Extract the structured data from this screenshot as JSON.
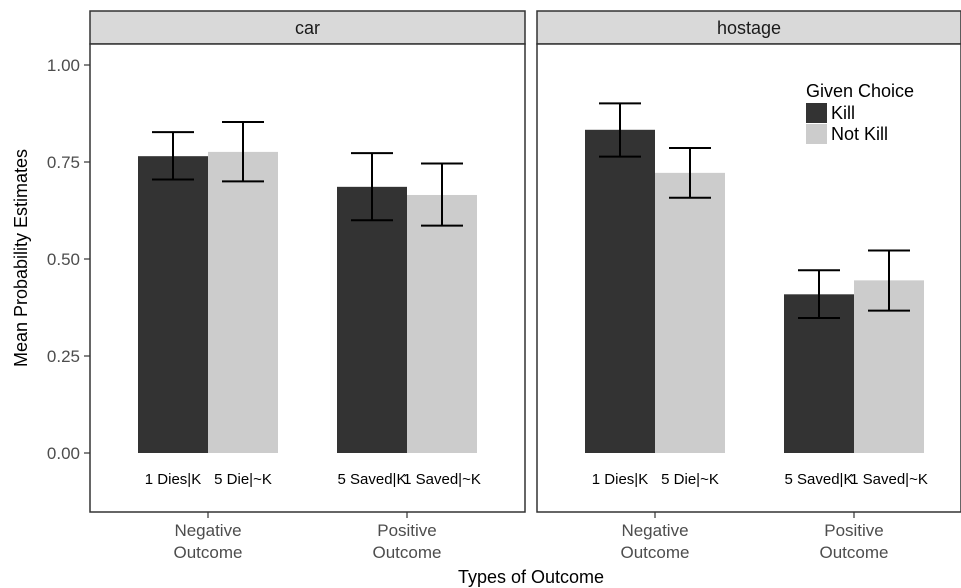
{
  "chart_data": {
    "type": "bar",
    "xlabel": "Types of Outcome",
    "ylabel": "Mean Probability Estimates",
    "ylim": [
      0,
      1.05
    ],
    "yticks": [
      "0.00",
      "0.25",
      "0.50",
      "0.75",
      "1.00"
    ],
    "legend": {
      "title": "Given Choice",
      "placement": "top-right",
      "entries": [
        {
          "name": "Kill",
          "color": "#333333"
        },
        {
          "name": "Not Kill",
          "color": "#cccccc"
        }
      ]
    },
    "group_labels": [
      {
        "line1": "Negative",
        "line2": "Outcome"
      },
      {
        "line1": "Positive",
        "line2": "Outcome"
      }
    ],
    "panels": [
      {
        "name": "car",
        "bars": [
          {
            "label": "1 Dies|K",
            "series": "Kill",
            "value": 0.765,
            "err_low": 0.705,
            "err_high": 0.827
          },
          {
            "label": "5 Die|~K",
            "series": "Not Kill",
            "value": 0.776,
            "err_low": 0.7,
            "err_high": 0.853
          },
          {
            "label": "5 Saved|K",
            "series": "Kill",
            "value": 0.686,
            "err_low": 0.6,
            "err_high": 0.773
          },
          {
            "label": "1 Saved|~K",
            "series": "Not Kill",
            "value": 0.665,
            "err_low": 0.586,
            "err_high": 0.746
          }
        ]
      },
      {
        "name": "hostage",
        "bars": [
          {
            "label": "1 Dies|K",
            "series": "Kill",
            "value": 0.833,
            "err_low": 0.764,
            "err_high": 0.901
          },
          {
            "label": "5 Die|~K",
            "series": "Not Kill",
            "value": 0.722,
            "err_low": 0.658,
            "err_high": 0.786
          },
          {
            "label": "5 Saved|K",
            "series": "Kill",
            "value": 0.409,
            "err_low": 0.348,
            "err_high": 0.471
          },
          {
            "label": "1 Saved|~K",
            "series": "Not Kill",
            "value": 0.445,
            "err_low": 0.367,
            "err_high": 0.522
          }
        ]
      }
    ]
  }
}
